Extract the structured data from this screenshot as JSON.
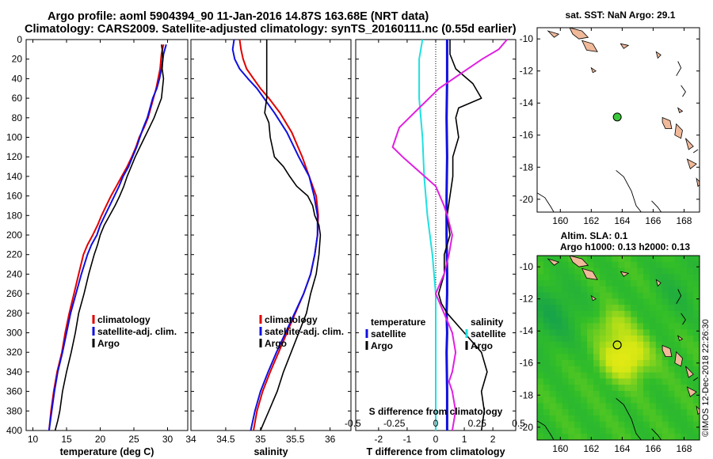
{
  "header": {
    "title_line1": "Argo profile: aoml 5904394_90 11-Jan-2016 14.87S 163.68E (NRT data)",
    "title_line2": "Climatology: CARS2009. Satellite-adjusted climatology: synTS_20160111.nc (0.55d earlier)"
  },
  "colors": {
    "climatology": "#e00000",
    "satellite": "#1010e0",
    "argo": "#000000",
    "sal_clim": "#e020e0",
    "sal_sat": "#20e0e0",
    "land": "#f0b99a"
  },
  "chart_data": [
    {
      "id": "temp",
      "type": "line",
      "xlabel": "temperature (deg C)",
      "ylabel": "",
      "xlim": [
        9,
        33
      ],
      "ylim": [
        0,
        400
      ],
      "xticks": [
        10,
        15,
        20,
        25,
        30
      ],
      "xticklabels": [
        "10",
        "15",
        "20",
        "25",
        "30"
      ],
      "yticks": [
        0,
        20,
        40,
        60,
        80,
        100,
        120,
        140,
        160,
        180,
        200,
        220,
        240,
        260,
        280,
        300,
        320,
        340,
        360,
        380,
        400
      ],
      "legend": [
        "climatology",
        "satellite-adj. clim.",
        "Argo"
      ],
      "series": [
        {
          "name": "climatology",
          "color": "#e00000",
          "x": [
            29.4,
            29.1,
            28.9,
            28.6,
            28.3,
            27.9,
            27.1,
            26.5,
            25.8,
            25.3,
            24.7,
            24.0,
            23.2,
            22.4,
            21.6,
            20.9,
            20.2,
            19.6,
            18.9,
            18.1,
            17.5,
            16.8,
            16.1,
            15.4,
            14.8,
            14.3,
            13.6,
            13.1,
            12.7,
            12.4
          ],
          "y": [
            5,
            15,
            30,
            40,
            50,
            60,
            80,
            90,
            100,
            110,
            120,
            130,
            140,
            150,
            160,
            170,
            180,
            190,
            200,
            210,
            220,
            240,
            260,
            280,
            300,
            320,
            340,
            360,
            380,
            400
          ]
        },
        {
          "name": "satellite-adj. clim.",
          "color": "#1010e0",
          "x": [
            29.8,
            29.4,
            29.1,
            28.8,
            28.4,
            27.8,
            27.0,
            26.4,
            25.9,
            25.4,
            24.8,
            24.2,
            23.4,
            22.8,
            22.1,
            21.4,
            20.7,
            20.0,
            19.5,
            18.7,
            18.1,
            17.2,
            16.4,
            15.6,
            15.0,
            14.4,
            13.7,
            13.2,
            12.8,
            12.4
          ],
          "y": [
            5,
            15,
            30,
            40,
            50,
            60,
            80,
            90,
            100,
            110,
            120,
            130,
            140,
            150,
            160,
            170,
            180,
            190,
            200,
            210,
            220,
            240,
            260,
            280,
            300,
            320,
            340,
            360,
            380,
            400
          ]
        },
        {
          "name": "Argo",
          "color": "#000000",
          "x": [
            29.1,
            29.2,
            29.3,
            29.2,
            29.4,
            29.1,
            28.0,
            27.3,
            26.6,
            25.9,
            25.2,
            24.6,
            24.0,
            23.5,
            22.9,
            22.2,
            21.4,
            20.6,
            20.0,
            19.6,
            19.1,
            18.3,
            17.6,
            16.8,
            16.3,
            15.7,
            15.0,
            14.4,
            14.0,
            13.7,
            13.3
          ],
          "y": [
            5,
            10,
            20,
            30,
            40,
            60,
            80,
            90,
            100,
            110,
            120,
            130,
            140,
            150,
            160,
            170,
            180,
            190,
            200,
            210,
            220,
            240,
            260,
            280,
            300,
            320,
            340,
            360,
            380,
            390,
            400
          ]
        }
      ]
    },
    {
      "id": "sal",
      "type": "line",
      "xlabel": "salinity",
      "ylabel": "",
      "xlim": [
        34,
        36.3
      ],
      "ylim": [
        0,
        400
      ],
      "xticks": [
        34,
        34.5,
        35,
        35.5,
        36
      ],
      "xticklabels": [
        "34",
        "34.5",
        "35",
        "35.5",
        "36"
      ],
      "legend": [
        "climatology",
        "satellite-adj. clim.",
        "Argo"
      ],
      "series": [
        {
          "name": "climatology",
          "color": "#e00000",
          "x": [
            34.7,
            34.72,
            34.75,
            34.8,
            34.9,
            35.0,
            35.12,
            35.28,
            35.45,
            35.6,
            35.7,
            35.8,
            35.83,
            35.82,
            35.78,
            35.72,
            35.62,
            35.5,
            35.38,
            35.26,
            35.14,
            35.03,
            34.95,
            34.9
          ],
          "y": [
            0,
            10,
            20,
            30,
            40,
            50,
            60,
            75,
            95,
            120,
            140,
            160,
            180,
            200,
            220,
            240,
            260,
            280,
            300,
            320,
            340,
            360,
            380,
            400
          ]
        },
        {
          "name": "satellite-adj. clim.",
          "color": "#1010e0",
          "x": [
            34.62,
            34.6,
            34.63,
            34.7,
            34.82,
            34.95,
            35.05,
            35.2,
            35.38,
            35.55,
            35.7,
            35.77,
            35.82,
            35.82,
            35.78,
            35.72,
            35.62,
            35.49,
            35.36,
            35.23,
            35.11,
            35.0,
            34.92,
            34.86
          ],
          "y": [
            0,
            10,
            20,
            30,
            40,
            50,
            60,
            75,
            95,
            120,
            140,
            160,
            180,
            200,
            220,
            240,
            260,
            280,
            300,
            320,
            340,
            360,
            380,
            400
          ]
        },
        {
          "name": "Argo",
          "color": "#000000",
          "x": [
            35.09,
            35.09,
            35.09,
            35.09,
            35.09,
            35.09,
            35.06,
            35.12,
            35.14,
            35.2,
            35.33,
            35.42,
            35.52,
            35.68,
            35.75,
            35.78,
            35.84,
            35.86,
            35.84,
            35.8,
            35.72,
            35.66,
            35.55,
            35.44,
            35.33,
            35.24,
            35.18,
            35.12,
            35.06,
            35.0
          ],
          "y": [
            0,
            10,
            20,
            30,
            40,
            60,
            75,
            85,
            100,
            120,
            130,
            140,
            150,
            160,
            170,
            180,
            190,
            200,
            220,
            240,
            260,
            280,
            300,
            320,
            340,
            360,
            370,
            380,
            390,
            400
          ]
        }
      ]
    },
    {
      "id": "diff",
      "type": "line",
      "xlabel": "T difference from climatology",
      "xlabel_top": "S difference from climatology",
      "xlim": [
        -2.8,
        2.8
      ],
      "ylim": [
        0,
        400
      ],
      "xticks": [
        -2,
        -1,
        0,
        1,
        2
      ],
      "xticklabels": [
        "-2",
        "-1",
        "0",
        "1",
        "2"
      ],
      "sticks": [
        -0.5,
        -0.25,
        0,
        0.25,
        0.5
      ],
      "sticklabels": [
        "-0.5",
        "-0.25",
        "0",
        "0.25",
        "0.5"
      ],
      "legend_left_title": "temperature",
      "legend_right_title": "salinity",
      "legend_left": [
        "satellite",
        "Argo"
      ],
      "legend_right": [
        "satellite",
        "Argo"
      ],
      "series": [
        {
          "name": "T satellite",
          "color": "#1010e0",
          "x": [
            0.4,
            0.4,
            0.38,
            0.4,
            0.38,
            0.38,
            0.4,
            0.4,
            0.38,
            0.4,
            0.38,
            0.4,
            0.4
          ],
          "y": [
            0,
            40,
            80,
            120,
            160,
            200,
            240,
            260,
            280,
            300,
            320,
            360,
            400
          ]
        },
        {
          "name": "T Argo",
          "color": "#000000",
          "x": [
            0.5,
            0.5,
            0.7,
            1.3,
            1.6,
            0.8,
            0.7,
            0.8,
            0.6,
            0.6,
            0.5,
            0.4,
            0.5,
            0.3,
            0.3,
            0.1,
            0.2,
            0.4,
            1.0,
            1.6,
            1.8,
            1.6,
            1.7,
            1.6
          ],
          "y": [
            0,
            15,
            30,
            45,
            60,
            70,
            80,
            100,
            120,
            140,
            160,
            180,
            200,
            220,
            240,
            260,
            270,
            280,
            300,
            320,
            340,
            360,
            380,
            400
          ]
        },
        {
          "name": "S satellite",
          "color": "#20e0e0",
          "x": [
            -0.08,
            -0.1,
            -0.1,
            -0.08,
            -0.07,
            -0.05,
            -0.02,
            0.0,
            0.0,
            0.0,
            0.0,
            0.0
          ],
          "y": [
            0,
            20,
            60,
            100,
            140,
            180,
            220,
            260,
            300,
            340,
            380,
            400
          ]
        },
        {
          "name": "S Argo",
          "color": "#e020e0",
          "x": [
            0.43,
            0.38,
            0.28,
            0.15,
            0.02,
            -0.1,
            -0.22,
            -0.26,
            -0.2,
            -0.1,
            0.0,
            0.05,
            0.07,
            0.1,
            0.08,
            0.05,
            0.0,
            0.05,
            0.1,
            0.12,
            0.1,
            0.08,
            0.1,
            0.12,
            0.1
          ],
          "y": [
            0,
            10,
            20,
            35,
            50,
            70,
            90,
            110,
            120,
            135,
            150,
            170,
            180,
            200,
            220,
            240,
            260,
            280,
            300,
            320,
            340,
            350,
            360,
            380,
            400
          ]
        }
      ]
    },
    {
      "id": "map_sst",
      "type": "map",
      "title": "sat. SST: NaN Argo: 29.1",
      "xticks": [
        160,
        162,
        164,
        166,
        168
      ],
      "yticks": [
        -10,
        -12,
        -14,
        -16,
        -18,
        -20
      ],
      "xlim": [
        158.5,
        169.0
      ],
      "ylim": [
        -20.8,
        -9.3
      ],
      "float_position": [
        163.68,
        -14.87
      ]
    },
    {
      "id": "map_sla",
      "type": "map",
      "title": "Altim. SLA: 0.1",
      "subtitle": "Argo h1000: 0.13 h2000: 0.13",
      "xticks": [
        160,
        162,
        164,
        166,
        168
      ],
      "yticks": [
        -10,
        -12,
        -14,
        -16,
        -18,
        -20
      ],
      "xlim": [
        158.5,
        169.0
      ],
      "ylim": [
        -20.8,
        -9.3
      ],
      "float_position": [
        163.68,
        -14.87
      ]
    }
  ],
  "footer": {
    "stamp": "©IMOS 12-Dec-2018 22:26:30"
  }
}
